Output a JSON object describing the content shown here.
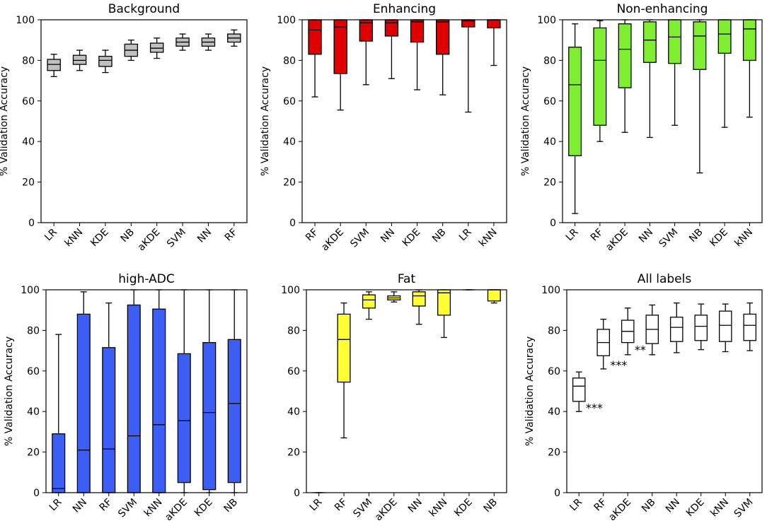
{
  "chart_data": [
    {
      "type": "boxplot",
      "title": "Background",
      "ylabel": "% Validation Accuracy",
      "ylim": [
        0,
        100
      ],
      "yticks": [
        0,
        20,
        40,
        60,
        80,
        100
      ],
      "fill": "#c0c0c0",
      "categories": [
        "LR",
        "kNN",
        "KDE",
        "NB",
        "aKDE",
        "SVM",
        "NN",
        "RF"
      ],
      "boxes": [
        {
          "min": 72,
          "q1": 75,
          "median": 78,
          "q3": 80.5,
          "max": 83
        },
        {
          "min": 75,
          "q1": 78,
          "median": 80,
          "q3": 82.5,
          "max": 85
        },
        {
          "min": 74,
          "q1": 77,
          "median": 80,
          "q3": 82,
          "max": 85
        },
        {
          "min": 80,
          "q1": 82,
          "median": 85,
          "q3": 88,
          "max": 90
        },
        {
          "min": 81,
          "q1": 84,
          "median": 86,
          "q3": 88.5,
          "max": 91
        },
        {
          "min": 85,
          "q1": 87,
          "median": 89,
          "q3": 91,
          "max": 93
        },
        {
          "min": 85,
          "q1": 87,
          "median": 89,
          "q3": 91,
          "max": 93
        },
        {
          "min": 87,
          "q1": 89,
          "median": 91,
          "q3": 93,
          "max": 95
        }
      ],
      "annotations": []
    },
    {
      "type": "boxplot",
      "title": "Enhancing",
      "ylabel": "% Validation Accuracy",
      "ylim": [
        0,
        100
      ],
      "yticks": [
        0,
        20,
        40,
        60,
        80,
        100
      ],
      "fill": "#e00000",
      "categories": [
        "RF",
        "aKDE",
        "SVM",
        "NN",
        "KDE",
        "NB",
        "LR",
        "kNN"
      ],
      "boxes": [
        {
          "min": 62,
          "q1": 83,
          "median": 95,
          "q3": 100,
          "max": 100
        },
        {
          "min": 55.5,
          "q1": 73.5,
          "median": 96.5,
          "q3": 100,
          "max": 100
        },
        {
          "min": 68,
          "q1": 89.5,
          "median": 98.5,
          "q3": 100,
          "max": 100
        },
        {
          "min": 71,
          "q1": 92,
          "median": 98.5,
          "q3": 100,
          "max": 100
        },
        {
          "min": 65.5,
          "q1": 89,
          "median": 99,
          "q3": 100,
          "max": 100
        },
        {
          "min": 63,
          "q1": 83,
          "median": 99,
          "q3": 100,
          "max": 100
        },
        {
          "min": 54.5,
          "q1": 96.5,
          "median": 99.5,
          "q3": 100,
          "max": 100
        },
        {
          "min": 77.5,
          "q1": 96,
          "median": 100,
          "q3": 100,
          "max": 100
        }
      ],
      "annotations": []
    },
    {
      "type": "boxplot",
      "title": "Non-enhancing",
      "ylabel": "% Validation Accuracy",
      "ylim": [
        0,
        100
      ],
      "yticks": [
        0,
        20,
        40,
        60,
        80,
        100
      ],
      "fill": "#80ee30",
      "categories": [
        "LR",
        "RF",
        "aKDE",
        "NN",
        "SVM",
        "NB",
        "KDE",
        "kNN"
      ],
      "boxes": [
        {
          "min": 4.5,
          "q1": 33,
          "median": 68,
          "q3": 86.5,
          "max": 98
        },
        {
          "min": 40,
          "q1": 48,
          "median": 80,
          "q3": 96,
          "max": 99.5
        },
        {
          "min": 44.5,
          "q1": 66.5,
          "median": 85.5,
          "q3": 98,
          "max": 100
        },
        {
          "min": 42,
          "q1": 79,
          "median": 90,
          "q3": 99,
          "max": 100
        },
        {
          "min": 48,
          "q1": 78.5,
          "median": 91.5,
          "q3": 100,
          "max": 100
        },
        {
          "min": 24.5,
          "q1": 75.5,
          "median": 92,
          "q3": 99,
          "max": 100
        },
        {
          "min": 47,
          "q1": 83.5,
          "median": 93,
          "q3": 100,
          "max": 100
        },
        {
          "min": 52,
          "q1": 80,
          "median": 95.5,
          "q3": 100,
          "max": 100
        }
      ],
      "annotations": []
    },
    {
      "type": "boxplot",
      "title": "high-ADC",
      "ylabel": "% Validation Accuracy",
      "ylim": [
        0,
        100
      ],
      "yticks": [
        0,
        20,
        40,
        60,
        80,
        100
      ],
      "fill": "#3c5ef5",
      "categories": [
        "LR",
        "NN",
        "RF",
        "SVM",
        "kNN",
        "aKDE",
        "KDE",
        "NB"
      ],
      "boxes": [
        {
          "min": 0,
          "q1": 0,
          "median": 2,
          "q3": 29,
          "max": 78
        },
        {
          "min": 0,
          "q1": 0,
          "median": 21,
          "q3": 88,
          "max": 99
        },
        {
          "min": 0,
          "q1": 0,
          "median": 21.5,
          "q3": 71.5,
          "max": 93.5
        },
        {
          "min": 0,
          "q1": 0,
          "median": 28,
          "q3": 92.5,
          "max": 100
        },
        {
          "min": 0,
          "q1": 0,
          "median": 33.5,
          "q3": 90.5,
          "max": 100
        },
        {
          "min": 0,
          "q1": 5,
          "median": 35.5,
          "q3": 68.5,
          "max": 100
        },
        {
          "min": 0,
          "q1": 1.5,
          "median": 39.5,
          "q3": 74,
          "max": 100
        },
        {
          "min": 0,
          "q1": 5,
          "median": 44,
          "q3": 75.5,
          "max": 100
        }
      ],
      "annotations": []
    },
    {
      "type": "boxplot",
      "title": "Fat",
      "ylabel": "",
      "ylim": [
        0,
        100
      ],
      "yticks": [
        0,
        20,
        40,
        60,
        80,
        100
      ],
      "fill": "#ffff33",
      "categories": [
        "LR",
        "RF",
        "SVM",
        "aKDE",
        "NN",
        "kNN",
        "KDE",
        "NB"
      ],
      "boxes": [
        {
          "min": 0,
          "q1": 0,
          "median": 0,
          "q3": 0,
          "max": 0
        },
        {
          "min": 27,
          "q1": 54.5,
          "median": 75.5,
          "q3": 88,
          "max": 93.5
        },
        {
          "min": 85.5,
          "q1": 91,
          "median": 95,
          "q3": 97.5,
          "max": 99
        },
        {
          "min": 94,
          "q1": 95,
          "median": 96,
          "q3": 97,
          "max": 99
        },
        {
          "min": 83,
          "q1": 92,
          "median": 97,
          "q3": 99,
          "max": 100
        },
        {
          "min": 76.5,
          "q1": 87.5,
          "median": 98.5,
          "q3": 100,
          "max": 100
        },
        {
          "min": 100,
          "q1": 100,
          "median": 100,
          "q3": 100,
          "max": 100
        },
        {
          "min": 93.5,
          "q1": 94.5,
          "median": 100,
          "q3": 100,
          "max": 100
        }
      ],
      "annotations": []
    },
    {
      "type": "boxplot",
      "title": "All labels",
      "ylabel": "% Validation Accuracy",
      "ylim": [
        0,
        100
      ],
      "yticks": [
        0,
        20,
        40,
        60,
        80,
        100
      ],
      "fill": "#ffffff",
      "categories": [
        "LR",
        "RF",
        "aKDE",
        "NB",
        "NN",
        "KDE",
        "kNN",
        "SVM"
      ],
      "boxes": [
        {
          "min": 40,
          "q1": 45,
          "median": 52.5,
          "q3": 56.5,
          "max": 59.5
        },
        {
          "min": 61,
          "q1": 67.5,
          "median": 74,
          "q3": 80.5,
          "max": 85.5
        },
        {
          "min": 68,
          "q1": 74,
          "median": 79.5,
          "q3": 85,
          "max": 91
        },
        {
          "min": 68,
          "q1": 73.5,
          "median": 80.5,
          "q3": 87.5,
          "max": 92.5
        },
        {
          "min": 69,
          "q1": 74.5,
          "median": 81.5,
          "q3": 86.5,
          "max": 93.5
        },
        {
          "min": 70.5,
          "q1": 75,
          "median": 82,
          "q3": 87.5,
          "max": 93
        },
        {
          "min": 69.5,
          "q1": 74.5,
          "median": 82.5,
          "q3": 89.5,
          "max": 93
        },
        {
          "min": 70,
          "q1": 75,
          "median": 82.5,
          "q3": 88,
          "max": 93.5
        }
      ],
      "annotations": [
        {
          "text": "***",
          "category_index": 0,
          "y": 42
        },
        {
          "text": "***",
          "category_index": 1,
          "y": 63
        },
        {
          "text": "**",
          "category_index": 2,
          "y": 70.5
        }
      ]
    }
  ]
}
